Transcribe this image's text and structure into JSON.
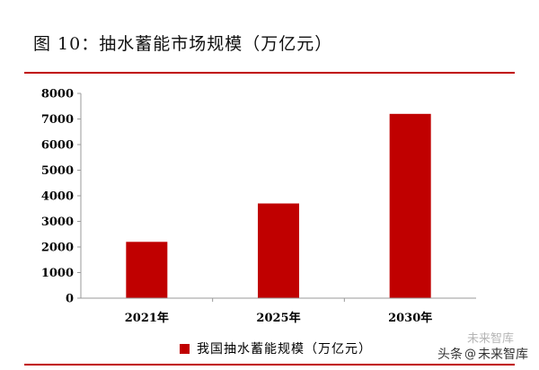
{
  "figure_title": "图 10：抽水蓄能市场规模（万亿元）",
  "watermark": {
    "prefix": "头条",
    "at": "@",
    "source": "未来智库",
    "faint": "未来智库"
  },
  "colors": {
    "bar": "#c00000",
    "rule": "#c00000",
    "axis": "#999999"
  },
  "chart_data": {
    "type": "bar",
    "title": "图 10：抽水蓄能市场规模（万亿元）",
    "categories": [
      "2021年",
      "2025年",
      "2030年"
    ],
    "series": [
      {
        "name": "我国抽水蓄能规模（万亿元）",
        "values": [
          2200,
          3700,
          7200
        ]
      }
    ],
    "ylim": [
      0,
      8000
    ],
    "yticks": [
      0,
      1000,
      2000,
      3000,
      4000,
      5000,
      6000,
      7000,
      8000
    ],
    "xlabel": "",
    "ylabel": "",
    "grid": false,
    "legend": "bottom"
  }
}
